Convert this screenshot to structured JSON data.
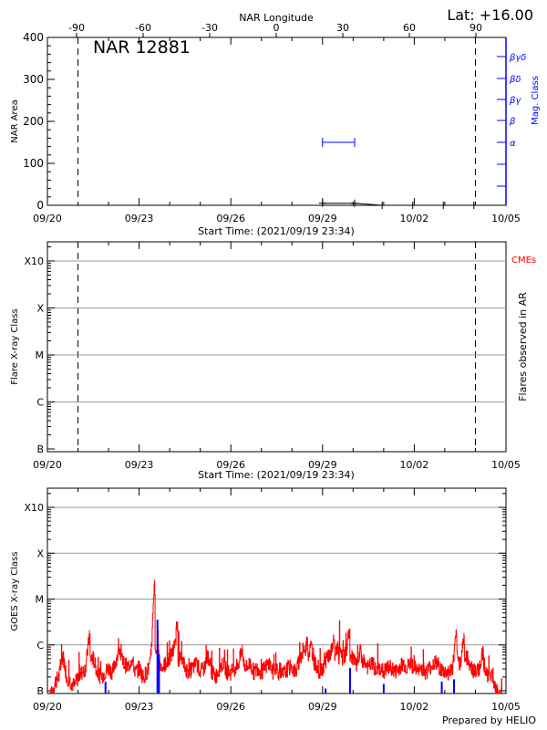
{
  "chart_data": [
    {
      "type": "line",
      "title": "NAR 12881",
      "lat_label": "Lat: +16.00",
      "top_axis_label": "NAR Longitude",
      "top_ticks": [
        "-90",
        "-60",
        "-30",
        "0",
        "30",
        "60",
        "90"
      ],
      "top_tick_values": [
        -90,
        -60,
        -30,
        0,
        30,
        60,
        90
      ],
      "ylabel": "NAR Area",
      "ylim": [
        0,
        400
      ],
      "yticks": [
        "0",
        "100",
        "200",
        "300",
        "400"
      ],
      "ytick_values": [
        0,
        100,
        200,
        300,
        400
      ],
      "y2label": "Mag. Class",
      "y2_classes": [
        "α",
        "β",
        "βγ",
        "βδ",
        "βγδ"
      ],
      "xlabel": "Start Time: (2021/09/19 23:34)",
      "xticks": [
        "09/20",
        "09/23",
        "09/26",
        "09/29",
        "10/02",
        "10/05"
      ],
      "xlim_days": [
        0,
        15
      ],
      "limb_lines_days": [
        1.0,
        14.0
      ],
      "area_series": {
        "days": [
          9.0,
          10.05,
          10.95,
          11.95,
          12.95,
          13.95
        ],
        "values": [
          5,
          5,
          0,
          0,
          0,
          0
        ]
      },
      "mag_series": {
        "days": [
          9.0,
          10.05
        ],
        "class_index": [
          0,
          0
        ]
      }
    },
    {
      "type": "scatter",
      "ylabel": "Flare X-ray Class",
      "y2label": "Flares observed in AR",
      "cme_label": "CMEs",
      "yticks": [
        "B",
        "C",
        "M",
        "X",
        "X10"
      ],
      "xlabel": "Start Time: (2021/09/19 23:34)",
      "xticks": [
        "09/20",
        "09/23",
        "09/26",
        "09/29",
        "10/02",
        "10/05"
      ],
      "limb_lines_days": [
        1.0,
        14.0
      ],
      "flares": []
    },
    {
      "type": "line",
      "ylabel": "GOES X-ray Class",
      "yticks": [
        "B",
        "C",
        "M",
        "X",
        "X10"
      ],
      "ytick_log_flux": [
        -7,
        -6,
        -5,
        -4,
        -3
      ],
      "xticks": [
        "09/20",
        "09/23",
        "09/26",
        "09/29",
        "10/02",
        "10/05"
      ],
      "footer": "Prepared by HELIO",
      "long_channel": {
        "color": "#ff0000",
        "step_hours": 3,
        "log_flux": [
          -7.1,
          -7.1,
          -6.8,
          -6.7,
          -6.2,
          -6.7,
          -6.8,
          -6.9,
          -6.7,
          -6.6,
          -6.5,
          -5.75,
          -6.3,
          -6.6,
          -6.7,
          -6.6,
          -6.5,
          -6.6,
          -6.3,
          -6.1,
          -6.4,
          -6.5,
          -6.3,
          -6.6,
          -6.5,
          -6.7,
          -6.6,
          -6.4,
          -4.65,
          -6.0,
          -6.5,
          -6.4,
          -6.3,
          -6.1,
          -5.5,
          -6.3,
          -6.5,
          -6.6,
          -6.5,
          -6.4,
          -6.6,
          -6.5,
          -6.2,
          -6.6,
          -6.7,
          -6.5,
          -6.4,
          -6.6,
          -6.6,
          -6.5,
          -6.4,
          -6.1,
          -6.5,
          -6.4,
          -6.6,
          -6.5,
          -6.6,
          -6.5,
          -6.4,
          -6.6,
          -6.5,
          -6.7,
          -6.6,
          -6.5,
          -6.5,
          -6.6,
          -6.3,
          -6.1,
          -5.85,
          -6.0,
          -6.4,
          -6.6,
          -6.5,
          -6.3,
          -6.2,
          -5.9,
          -6.0,
          -6.1,
          -6.2,
          -5.65,
          -6.3,
          -6.5,
          -6.1,
          -6.4,
          -6.5,
          -6.4,
          -6.6,
          -6.5,
          -6.6,
          -6.5,
          -6.5,
          -6.6,
          -6.5,
          -6.4,
          -6.5,
          -6.4,
          -6.5,
          -6.6,
          -6.5,
          -6.6,
          -6.5,
          -6.4,
          -6.4,
          -6.55,
          -6.6,
          -6.6,
          -6.5,
          -5.75,
          -6.4,
          -5.8,
          -6.3,
          -6.5,
          -6.6,
          -6.5,
          -6.1,
          -6.7,
          -6.6,
          -6.9,
          -7.1,
          -7.1
        ]
      },
      "short_channel": {
        "color": "#0000ff",
        "spikes": [
          {
            "day": 1.9,
            "log_flux": -6.8
          },
          {
            "day": 3.6,
            "log_flux": -5.45
          },
          {
            "day": 3.65,
            "log_flux": -6.2
          },
          {
            "day": 9.1,
            "log_flux": -6.95
          },
          {
            "day": 9.9,
            "log_flux": -6.5
          },
          {
            "day": 11.0,
            "log_flux": -6.85
          },
          {
            "day": 12.9,
            "log_flux": -6.8
          },
          {
            "day": 13.3,
            "log_flux": -6.75
          }
        ]
      }
    }
  ]
}
